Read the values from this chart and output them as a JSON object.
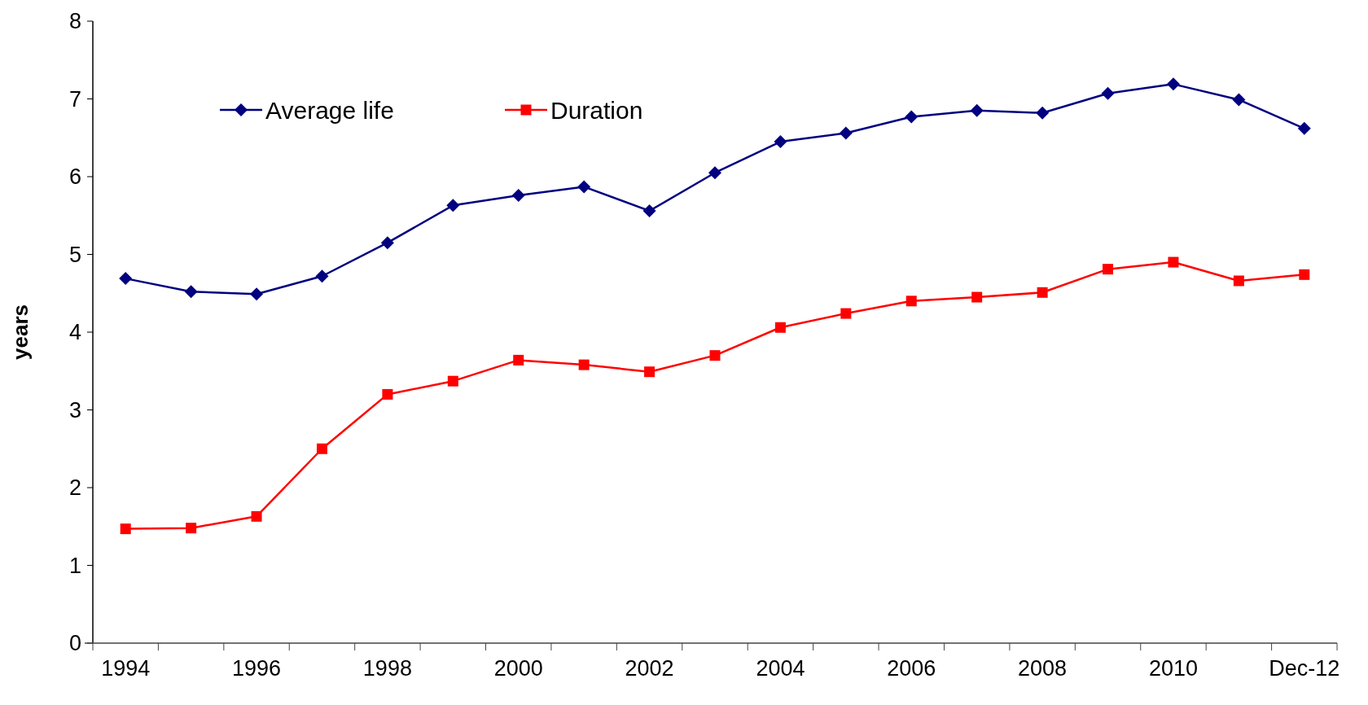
{
  "chart_data": {
    "type": "line",
    "ylabel": "years",
    "categories": [
      "1994",
      null,
      "1996",
      null,
      "1998",
      null,
      "2000",
      null,
      "2002",
      null,
      "2004",
      null,
      "2006",
      null,
      "2008",
      null,
      "2010",
      null,
      "Dec-12"
    ],
    "series": [
      {
        "name": "Average life",
        "color": "#000080",
        "marker": "diamond",
        "values": [
          4.69,
          4.52,
          4.49,
          4.72,
          5.15,
          5.63,
          5.76,
          5.87,
          5.56,
          6.05,
          6.45,
          6.56,
          6.77,
          6.85,
          6.82,
          7.07,
          7.19,
          6.99,
          6.62
        ]
      },
      {
        "name": "Duration",
        "color": "#ff0000",
        "marker": "square",
        "values": [
          1.47,
          1.48,
          1.63,
          2.5,
          3.2,
          3.37,
          3.64,
          3.58,
          3.49,
          3.7,
          4.06,
          4.24,
          4.4,
          4.45,
          4.51,
          4.81,
          4.9,
          4.66,
          4.74
        ]
      }
    ],
    "ylim": [
      0,
      8
    ],
    "yticks": [
      0,
      1,
      2,
      3,
      4,
      5,
      6,
      7,
      8
    ],
    "grid": false,
    "legend": "top",
    "line_style": "solid"
  }
}
